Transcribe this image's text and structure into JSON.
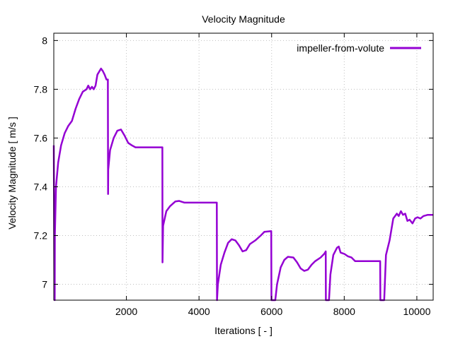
{
  "chart_data": {
    "type": "line",
    "title": "Velocity Magnitude",
    "xlabel": "Iterations [ - ]",
    "ylabel": "Velocity Magnitude [ m/s ]",
    "xlim": [
      0,
      10450
    ],
    "ylim": [
      6.935,
      8.03
    ],
    "x_ticks": [
      2000,
      4000,
      6000,
      8000,
      10000
    ],
    "y_ticks": [
      7,
      7.2,
      7.4,
      7.6,
      7.8,
      8
    ],
    "x_tick_labels": [
      "2000",
      "4000",
      "6000",
      "8000",
      "10000"
    ],
    "y_tick_labels": [
      "7",
      "7.2",
      "7.4",
      "7.6",
      "7.8",
      "8"
    ],
    "grid": true,
    "legend_position": "top-right",
    "series": [
      {
        "name": "impeller-from-volute",
        "color": "#9400d3",
        "points": [
          [
            0,
            7.57
          ],
          [
            15,
            7.0
          ],
          [
            25,
            6.935
          ],
          [
            30,
            7.2
          ],
          [
            60,
            7.4
          ],
          [
            120,
            7.5
          ],
          [
            200,
            7.57
          ],
          [
            300,
            7.62
          ],
          [
            400,
            7.65
          ],
          [
            500,
            7.67
          ],
          [
            600,
            7.72
          ],
          [
            700,
            7.76
          ],
          [
            800,
            7.79
          ],
          [
            900,
            7.8
          ],
          [
            950,
            7.815
          ],
          [
            1000,
            7.8
          ],
          [
            1050,
            7.81
          ],
          [
            1100,
            7.8
          ],
          [
            1150,
            7.815
          ],
          [
            1200,
            7.86
          ],
          [
            1300,
            7.885
          ],
          [
            1350,
            7.875
          ],
          [
            1400,
            7.86
          ],
          [
            1450,
            7.84
          ],
          [
            1490,
            7.84
          ],
          [
            1495,
            7.37
          ],
          [
            1500,
            7.47
          ],
          [
            1550,
            7.55
          ],
          [
            1650,
            7.6
          ],
          [
            1750,
            7.63
          ],
          [
            1850,
            7.635
          ],
          [
            1950,
            7.61
          ],
          [
            2050,
            7.58
          ],
          [
            2150,
            7.57
          ],
          [
            2250,
            7.562
          ],
          [
            2990,
            7.562
          ],
          [
            2995,
            7.09
          ],
          [
            3010,
            7.24
          ],
          [
            3100,
            7.3
          ],
          [
            3200,
            7.32
          ],
          [
            3350,
            7.34
          ],
          [
            3450,
            7.342
          ],
          [
            3600,
            7.335
          ],
          [
            4490,
            7.335
          ],
          [
            4495,
            6.935
          ],
          [
            4520,
            7.0
          ],
          [
            4600,
            7.08
          ],
          [
            4700,
            7.13
          ],
          [
            4800,
            7.17
          ],
          [
            4900,
            7.185
          ],
          [
            5000,
            7.18
          ],
          [
            5100,
            7.16
          ],
          [
            5200,
            7.135
          ],
          [
            5300,
            7.14
          ],
          [
            5400,
            7.165
          ],
          [
            5550,
            7.18
          ],
          [
            5700,
            7.2
          ],
          [
            5800,
            7.215
          ],
          [
            5990,
            7.218
          ],
          [
            5995,
            6.935
          ],
          [
            6100,
            6.935
          ],
          [
            6150,
            7.0
          ],
          [
            6250,
            7.07
          ],
          [
            6350,
            7.1
          ],
          [
            6450,
            7.113
          ],
          [
            6600,
            7.11
          ],
          [
            6700,
            7.09
          ],
          [
            6800,
            7.065
          ],
          [
            6900,
            7.055
          ],
          [
            7000,
            7.06
          ],
          [
            7100,
            7.08
          ],
          [
            7200,
            7.095
          ],
          [
            7350,
            7.11
          ],
          [
            7450,
            7.125
          ],
          [
            7490,
            7.135
          ],
          [
            7495,
            6.935
          ],
          [
            7580,
            6.935
          ],
          [
            7620,
            7.04
          ],
          [
            7700,
            7.12
          ],
          [
            7800,
            7.15
          ],
          [
            7850,
            7.155
          ],
          [
            7900,
            7.13
          ],
          [
            8000,
            7.125
          ],
          [
            8100,
            7.115
          ],
          [
            8200,
            7.11
          ],
          [
            8300,
            7.095
          ],
          [
            8990,
            7.095
          ],
          [
            8995,
            6.935
          ],
          [
            9100,
            6.935
          ],
          [
            9150,
            7.12
          ],
          [
            9250,
            7.18
          ],
          [
            9350,
            7.27
          ],
          [
            9450,
            7.29
          ],
          [
            9500,
            7.28
          ],
          [
            9560,
            7.3
          ],
          [
            9620,
            7.285
          ],
          [
            9680,
            7.29
          ],
          [
            9740,
            7.26
          ],
          [
            9800,
            7.265
          ],
          [
            9880,
            7.25
          ],
          [
            9950,
            7.27
          ],
          [
            10020,
            7.275
          ],
          [
            10100,
            7.27
          ],
          [
            10180,
            7.28
          ],
          [
            10300,
            7.285
          ],
          [
            10450,
            7.285
          ]
        ]
      }
    ]
  }
}
